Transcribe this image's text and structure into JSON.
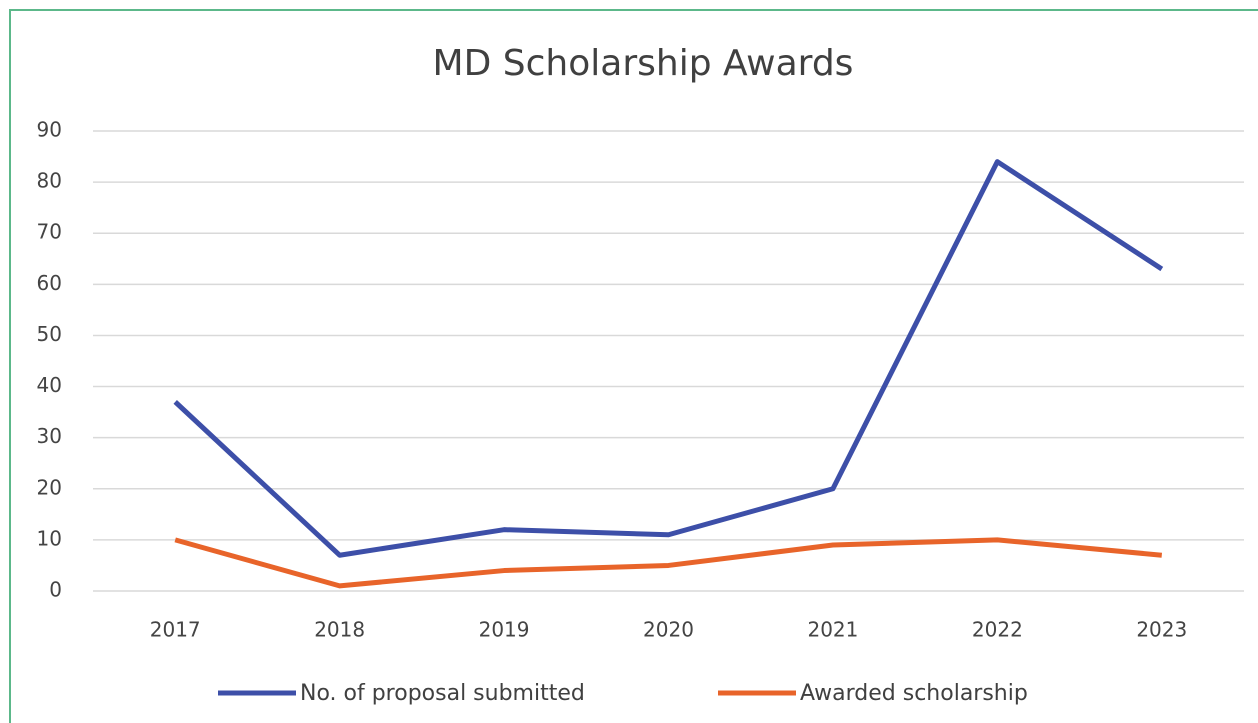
{
  "chart_data": {
    "type": "line",
    "title": "MD Scholarship Awards",
    "categories": [
      "2017",
      "2018",
      "2019",
      "2020",
      "2021",
      "2022",
      "2023"
    ],
    "series": [
      {
        "name": "No. of proposal submitted",
        "color": "#3d4fa8",
        "values": [
          37,
          7,
          12,
          11,
          20,
          84,
          63
        ]
      },
      {
        "name": "Awarded scholarship",
        "color": "#e8642a",
        "values": [
          10,
          1,
          4,
          5,
          9,
          10,
          7
        ]
      }
    ],
    "ylim": [
      0,
      90
    ],
    "yticks": [
      0,
      10,
      20,
      30,
      40,
      50,
      60,
      70,
      80,
      90
    ],
    "grid": true,
    "legend": "bottom"
  }
}
